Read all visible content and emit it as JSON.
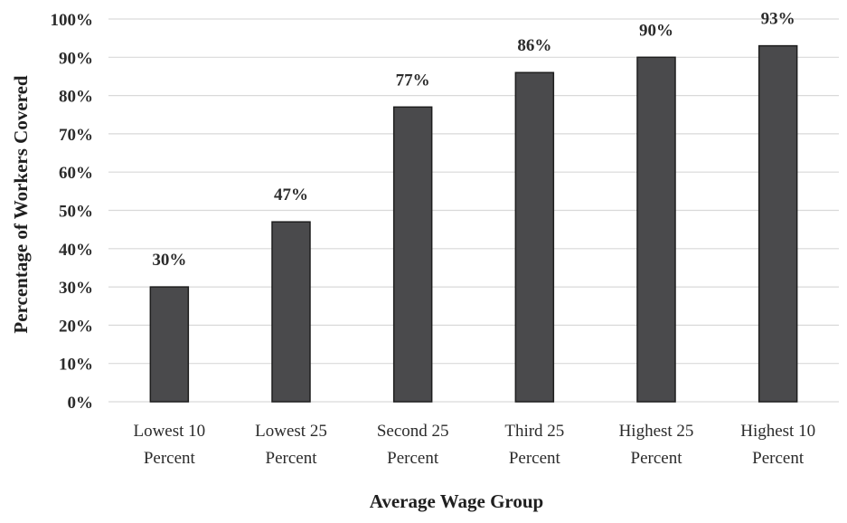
{
  "chart_data": {
    "type": "bar",
    "categories": [
      [
        "Lowest 10",
        "Percent"
      ],
      [
        "Lowest 25",
        "Percent"
      ],
      [
        "Second 25",
        "Percent"
      ],
      [
        "Third 25",
        "Percent"
      ],
      [
        "Highest 25",
        "Percent"
      ],
      [
        "Highest 10",
        "Percent"
      ]
    ],
    "values": [
      30,
      47,
      77,
      86,
      90,
      93
    ],
    "data_labels": [
      "30%",
      "47%",
      "77%",
      "86%",
      "90%",
      "93%"
    ],
    "xlabel": "Average Wage Group",
    "ylabel": "Percentage of Workers Covered",
    "ylim": [
      0,
      100
    ],
    "yticks": [
      "0%",
      "10%",
      "20%",
      "30%",
      "40%",
      "50%",
      "60%",
      "70%",
      "80%",
      "90%",
      "100%"
    ],
    "grid": true,
    "bar_color": "#4a4a4c"
  }
}
